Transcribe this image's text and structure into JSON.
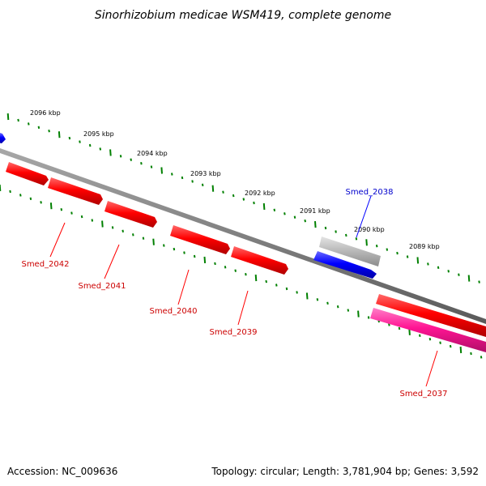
{
  "title": "Sinorhizobium medicae WSM419, complete genome",
  "footer": {
    "accession": "Accession: NC_009636",
    "topology": "Topology: circular; Length: 3,781,904 bp; Genes: 3,592"
  },
  "colors": {
    "forward_strand": "#ff0000",
    "forward_strand_alt": "#ff1493",
    "reverse_strand": "#0000ff",
    "pseudo": "#bbbbbb",
    "backbone": "#808080",
    "ticks": "#008000",
    "forward_label": "#cc0000",
    "reverse_label": "#0000cc"
  },
  "scale": {
    "unit": "kbp",
    "ticks": [
      {
        "value": 2096,
        "label": "2096 kbp"
      },
      {
        "value": 2095,
        "label": "2095 kbp"
      },
      {
        "value": 2094,
        "label": "2094 kbp"
      },
      {
        "value": 2093,
        "label": "2093 kbp"
      },
      {
        "value": 2092,
        "label": "2092 kbp"
      },
      {
        "value": 2091,
        "label": "2091 kbp"
      },
      {
        "value": 2090,
        "label": "2090 kbp"
      },
      {
        "value": 2089,
        "label": "2089 kbp"
      }
    ]
  },
  "genes": [
    {
      "name": "Smed_2042",
      "strand": "forward"
    },
    {
      "name": "Smed_2041",
      "strand": "forward"
    },
    {
      "name": "Smed_2040",
      "strand": "forward"
    },
    {
      "name": "Smed_2039",
      "strand": "forward"
    },
    {
      "name": "Smed_2038",
      "strand": "reverse"
    },
    {
      "name": "Smed_2037",
      "strand": "forward"
    }
  ]
}
